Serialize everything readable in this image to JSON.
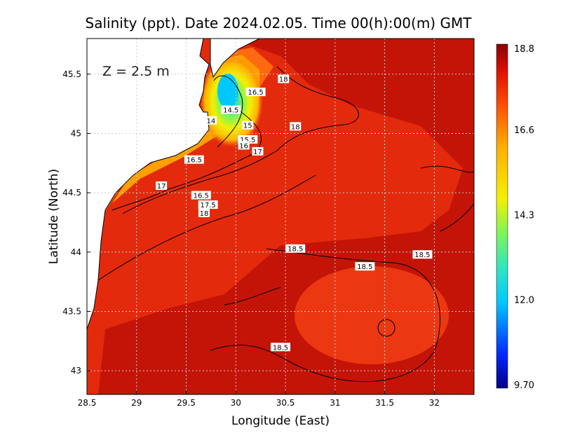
{
  "chart_data": {
    "type": "heatmap",
    "title": "Salinity (ppt). Date 2024.02.05. Time 00(h):00(m) GMT",
    "xlabel": "Longitude (East)",
    "ylabel": "Latitude (North)",
    "depth_label": "Z = 2.5 m",
    "xlim": [
      28.5,
      32.4
    ],
    "ylim": [
      42.8,
      45.8
    ],
    "x_ticks": [
      28.5,
      29,
      29.5,
      30,
      30.5,
      31,
      31.5,
      32
    ],
    "x_tick_labels": [
      "28.5",
      "29",
      "29.5",
      "30",
      "30.5",
      "31",
      "31.5",
      "32"
    ],
    "y_ticks": [
      43,
      43.5,
      44,
      44.5,
      45,
      45.5
    ],
    "y_tick_labels": [
      "43",
      "43.5",
      "44",
      "44.5",
      "45",
      "45.5"
    ],
    "grid": true,
    "colorbar": {
      "min": 9.7,
      "max": 18.8,
      "labels": [
        "18.8",
        "16.6",
        "14.3",
        "12.0",
        "9.70"
      ],
      "label_values": [
        18.8,
        16.6,
        14.3,
        12.0,
        9.7
      ],
      "colors": [
        "#00008a",
        "#0028ff",
        "#00c8ff",
        "#30e6c0",
        "#7cf55a",
        "#f4f000",
        "#ffb000",
        "#ff5000",
        "#e01000",
        "#8a0000"
      ]
    },
    "contour_labels": [
      {
        "text": "18",
        "lon": 30.48,
        "lat": 45.46
      },
      {
        "text": "16.5",
        "lon": 30.2,
        "lat": 45.35
      },
      {
        "text": "14.5",
        "lon": 29.95,
        "lat": 45.2
      },
      {
        "text": "14",
        "lon": 29.75,
        "lat": 45.11
      },
      {
        "text": "15",
        "lon": 30.12,
        "lat": 45.07
      },
      {
        "text": "18",
        "lon": 30.6,
        "lat": 45.06
      },
      {
        "text": "15.5",
        "lon": 30.12,
        "lat": 44.95
      },
      {
        "text": "16",
        "lon": 30.08,
        "lat": 44.9
      },
      {
        "text": "17",
        "lon": 30.22,
        "lat": 44.85
      },
      {
        "text": "16.5",
        "lon": 29.58,
        "lat": 44.78
      },
      {
        "text": "17",
        "lon": 29.25,
        "lat": 44.56
      },
      {
        "text": "16.5",
        "lon": 29.65,
        "lat": 44.48
      },
      {
        "text": "17.5",
        "lon": 29.72,
        "lat": 44.4
      },
      {
        "text": "18",
        "lon": 29.68,
        "lat": 44.33
      },
      {
        "text": "18.5",
        "lon": 30.6,
        "lat": 44.03
      },
      {
        "text": "18.5",
        "lon": 31.88,
        "lat": 43.98
      },
      {
        "text": "18.5",
        "lon": 31.3,
        "lat": 43.88
      },
      {
        "text": "18.5",
        "lon": 30.45,
        "lat": 43.2
      }
    ]
  }
}
